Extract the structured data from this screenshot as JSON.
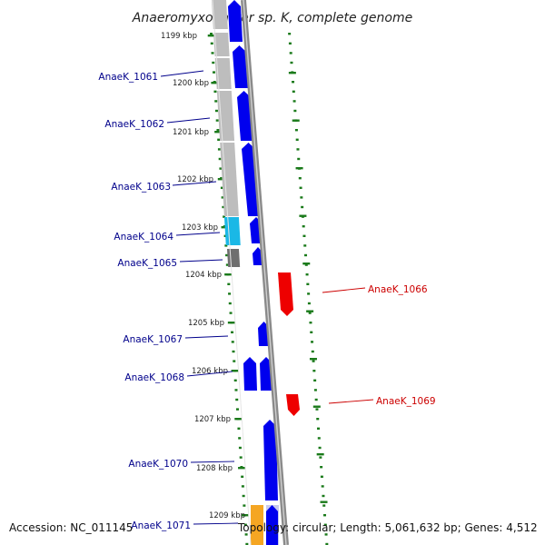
{
  "title": "Anaeromyxobacter sp. K, complete genome",
  "accession": "Accession: NC_011145",
  "summary": "Topology: circular; Length: 5,061,632 bp; Genes: 4,512",
  "colors": {
    "forward_gene": "#0000ee",
    "reverse_gene": "#ee0000",
    "gray_feature": "#bdbdbd",
    "cyan_feature": "#1ab8e6",
    "dark_feature": "#6f6f6f",
    "orange_feature": "#f5a623",
    "pale_feature": "#c7c9ee",
    "backbone": "#8a8a8a",
    "ticks": "#1a7a1a",
    "label_forward": "#00008b",
    "label_reverse": "#cc0000"
  },
  "kbp_labels": [
    "1199 kbp",
    "1200 kbp",
    "1201 kbp",
    "1202 kbp",
    "1203 kbp",
    "1204 kbp",
    "1205 kbp",
    "1206 kbp",
    "1207 kbp",
    "1208 kbp",
    "1209 kbp"
  ],
  "gene_labels": [
    {
      "text": "AnaeK_1061",
      "strand": "forward"
    },
    {
      "text": "AnaeK_1062",
      "strand": "forward"
    },
    {
      "text": "AnaeK_1063",
      "strand": "forward"
    },
    {
      "text": "AnaeK_1064",
      "strand": "forward"
    },
    {
      "text": "AnaeK_1065",
      "strand": "forward"
    },
    {
      "text": "AnaeK_1066",
      "strand": "reverse"
    },
    {
      "text": "AnaeK_1067",
      "strand": "forward"
    },
    {
      "text": "AnaeK_1068",
      "strand": "forward"
    },
    {
      "text": "AnaeK_1069",
      "strand": "reverse"
    },
    {
      "text": "AnaeK_1070",
      "strand": "forward"
    },
    {
      "text": "AnaeK_1071",
      "strand": "forward"
    }
  ]
}
